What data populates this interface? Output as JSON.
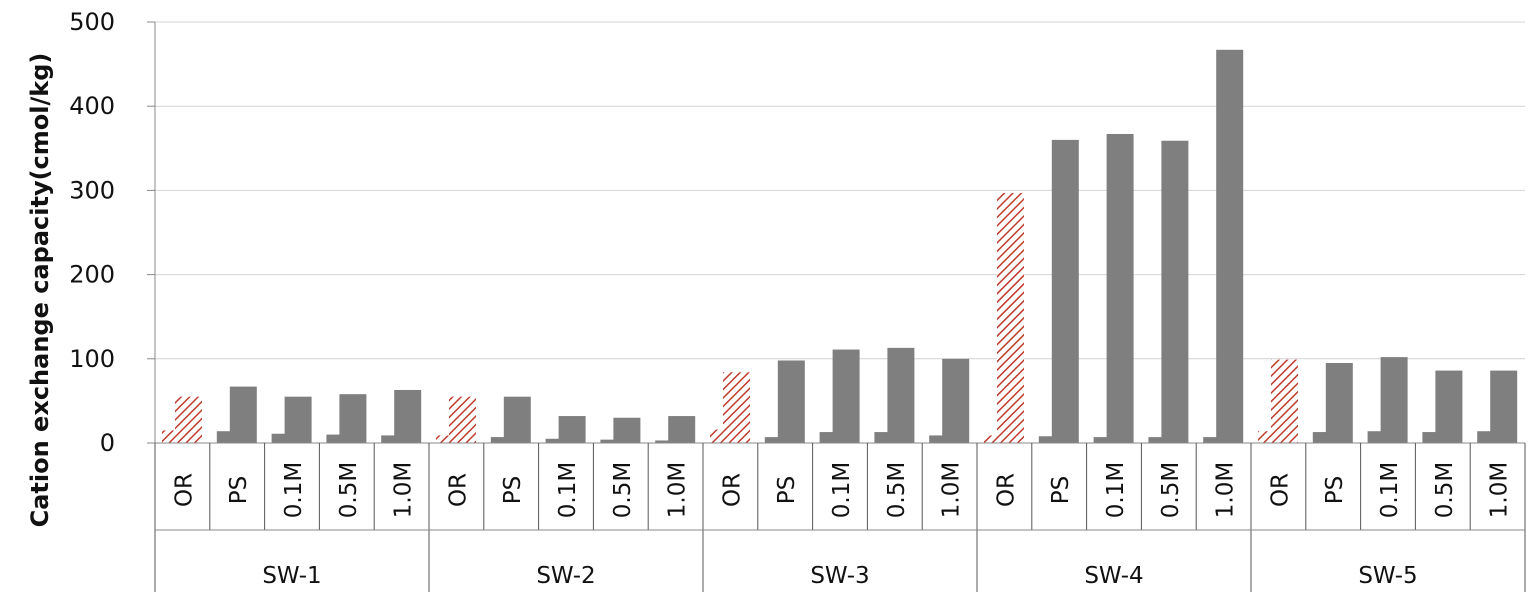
{
  "chart_data": {
    "type": "bar",
    "title": "",
    "xlabel": "",
    "ylabel": "Cation exchange capacity(cmol/kg)",
    "ylim": [
      0,
      500
    ],
    "yticks": [
      "0",
      "100",
      "200",
      "300",
      "400",
      "500"
    ],
    "grid": "horizontal",
    "groups": [
      "SW-1",
      "SW-2",
      "SW-3",
      "SW-4",
      "SW-5"
    ],
    "categories": [
      "OR",
      "PS",
      "0.1M",
      "0.5M",
      "1.0M"
    ],
    "colors": {
      "gray": "#7f7f7f",
      "hatch": "#c0392b"
    },
    "series": [
      {
        "values": [
          [
            15,
            14,
            11,
            10,
            9
          ],
          [
            9,
            7,
            5,
            4,
            3
          ],
          [
            16,
            7,
            13,
            13,
            9
          ],
          [
            9,
            8,
            7,
            7,
            7
          ],
          [
            14,
            13,
            14,
            13,
            14
          ]
        ]
      },
      {
        "values": [
          [
            55,
            67,
            55,
            58,
            63
          ],
          [
            55,
            55,
            32,
            30,
            32
          ],
          [
            84,
            98,
            111,
            113,
            100
          ],
          [
            297,
            360,
            367,
            359,
            467
          ],
          [
            99,
            95,
            102,
            86,
            86
          ]
        ]
      }
    ]
  }
}
